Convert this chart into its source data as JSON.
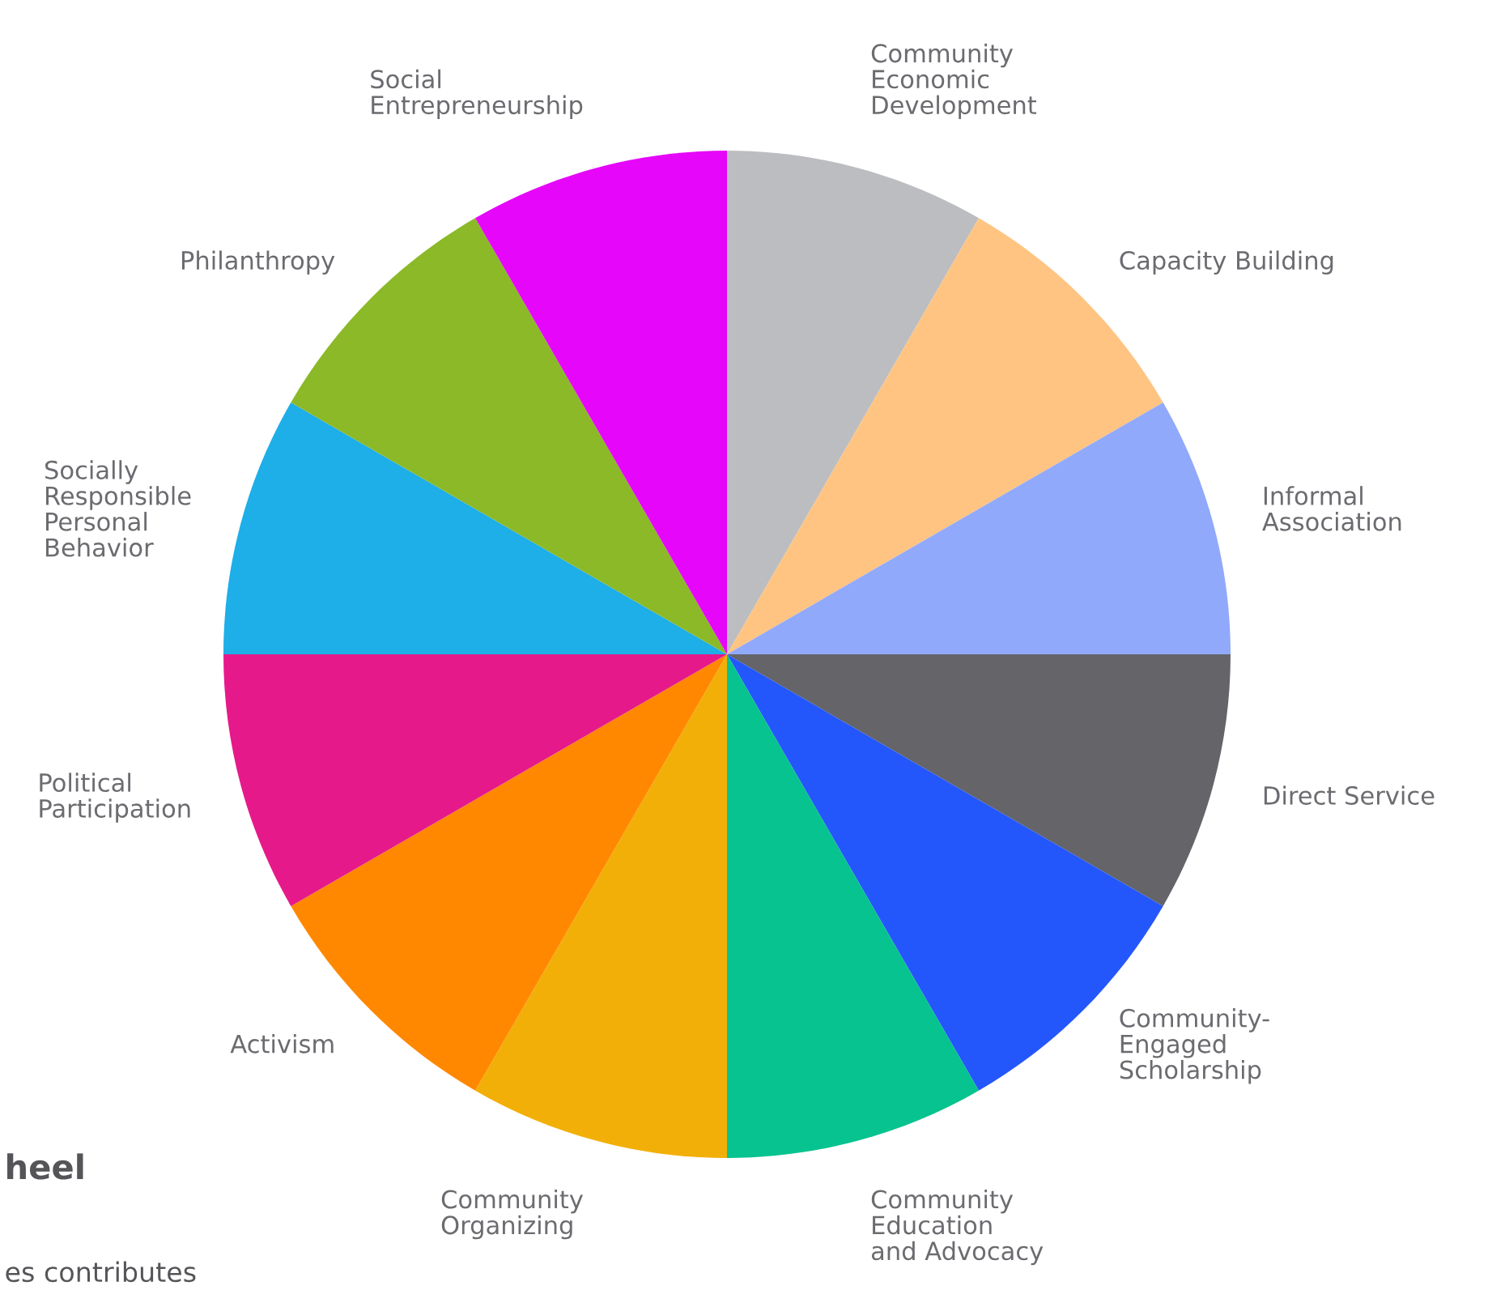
{
  "chart_data": {
    "type": "pie",
    "categories": [
      "Community\nEconomic\nDevelopment",
      "Capacity Building",
      "Informal\nAssociation",
      "Direct Service",
      "Community-\nEngaged\nScholarship",
      "Community\nEducation\nand Advocacy",
      "Community\nOrganizing",
      "Activism",
      "Political\nParticipation",
      "Socially\nResponsible\nPersonal\nBehavior",
      "Philanthropy",
      "Social\nEntrepreneurship"
    ],
    "values": [
      8.33,
      8.33,
      8.33,
      8.33,
      8.33,
      8.33,
      8.33,
      8.33,
      8.33,
      8.33,
      8.33,
      8.33
    ],
    "colors": [
      "#bcbdc1",
      "#ffc482",
      "#91a9fa",
      "#646469",
      "#2457fb",
      "#06c38f",
      "#f2af07",
      "#ff8800",
      "#e6198a",
      "#1eaee8",
      "#8bb928",
      "#e606f9"
    ],
    "annotations": [
      "heel",
      "es contributes"
    ]
  }
}
